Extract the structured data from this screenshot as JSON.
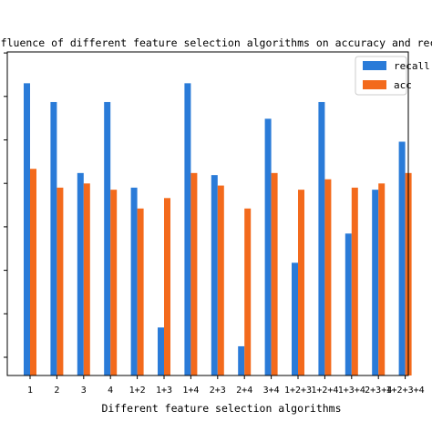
{
  "chart_data": {
    "type": "bar",
    "title": "Influence of different feature selection algorithms on accuracy and recall",
    "xlabel": "Different feature selection algorithms",
    "ylabel": "",
    "categories": [
      "1",
      "2",
      "3",
      "4",
      "1+2",
      "1+3",
      "1+4",
      "2+3",
      "2+4",
      "3+4",
      "1+2+3",
      "1+2+4",
      "1+3+4",
      "2+3+4",
      "1+2+3+4"
    ],
    "series": [
      {
        "name": "recall",
        "color": "#2a7bd8",
        "values": [
          0.972,
          0.963,
          0.929,
          0.963,
          0.922,
          0.855,
          0.972,
          0.928,
          0.846,
          0.955,
          0.886,
          0.963,
          0.9,
          0.921,
          0.944
        ]
      },
      {
        "name": "acc",
        "color": "#f36a1c",
        "values": [
          0.931,
          0.922,
          0.924,
          0.921,
          0.912,
          0.917,
          0.929,
          0.923,
          0.912,
          0.929,
          0.921,
          0.926,
          0.922,
          0.924,
          0.929
        ]
      }
    ],
    "ylim": [
      0.832,
      0.987
    ],
    "grid": false,
    "legend": "top-right"
  }
}
